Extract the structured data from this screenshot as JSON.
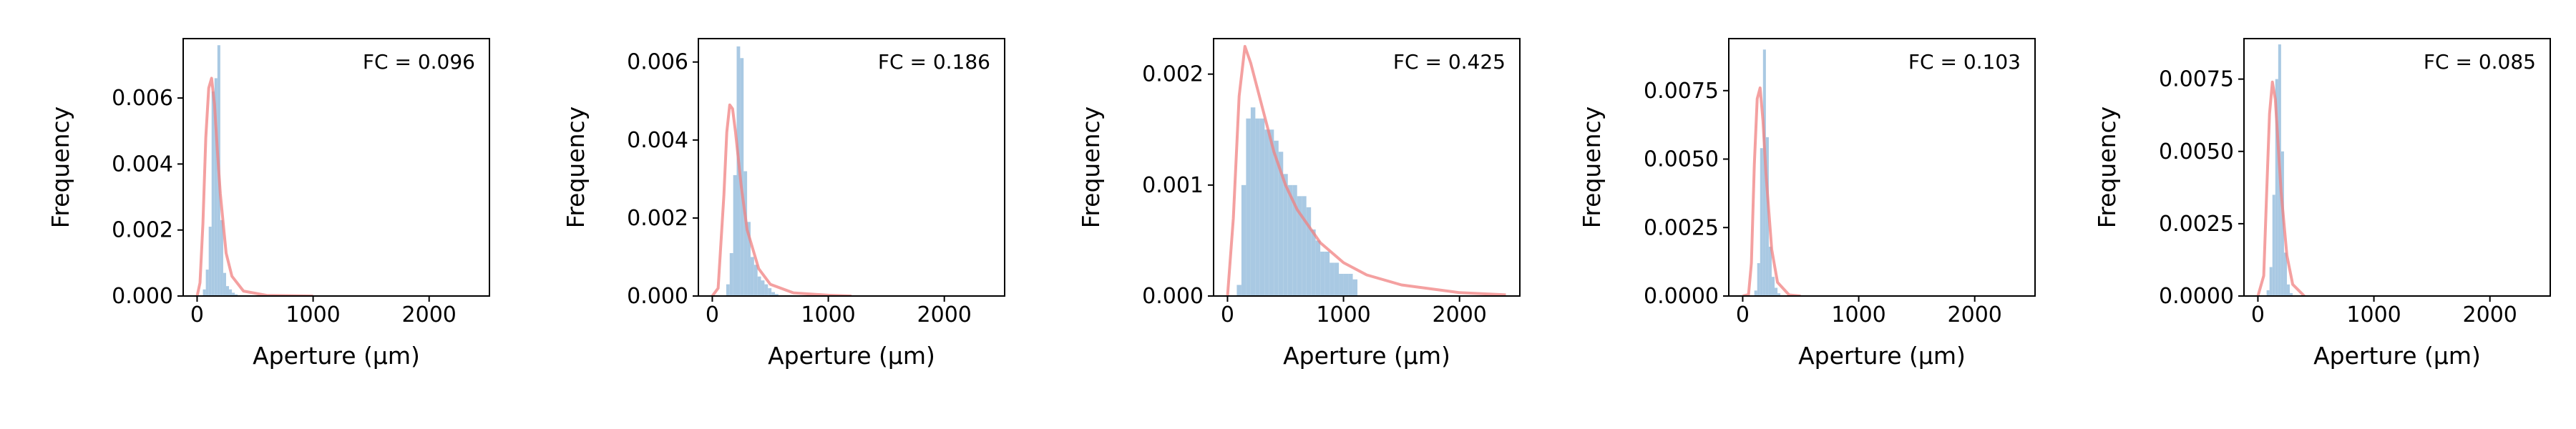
{
  "style": {
    "hist_color": "#a9c9e3",
    "curve_color": "#f08080",
    "axis_color": "#000000"
  },
  "chart_data": [
    {
      "type": "bar",
      "annotation": "FC = 0.096",
      "xlabel": "Aperture (μm)",
      "ylabel": "Frequency",
      "xlim": [
        -120,
        2520
      ],
      "ylim": [
        0,
        0.0078
      ],
      "xticks": [
        0,
        1000,
        2000
      ],
      "xtick_labels": [
        "0",
        "1000",
        "2000"
      ],
      "yticks": [
        0,
        0.002,
        0.004,
        0.006
      ],
      "ytick_labels": [
        "0.000",
        "0.002",
        "0.004",
        "0.006"
      ],
      "bin_width": 25,
      "histogram": {
        "bins": [
          50,
          75,
          100,
          125,
          150,
          175,
          200,
          225,
          250,
          275,
          300,
          325
        ],
        "values": [
          0.0002,
          0.0008,
          0.0021,
          0.0062,
          0.0066,
          0.0076,
          0.0023,
          0.0007,
          0.0003,
          0.0002,
          0.0001,
          5e-05
        ]
      },
      "fit_curve": {
        "x": [
          0,
          25,
          50,
          75,
          100,
          125,
          150,
          175,
          200,
          250,
          300,
          400,
          600,
          1000
        ],
        "y": [
          0,
          0.0004,
          0.0022,
          0.0048,
          0.0063,
          0.0066,
          0.0058,
          0.0044,
          0.0031,
          0.0013,
          0.0006,
          0.00015,
          2e-05,
          0
        ]
      }
    },
    {
      "type": "bar",
      "annotation": "FC = 0.186",
      "xlabel": "Aperture (μm)",
      "ylabel": "Frequency",
      "xlim": [
        -120,
        2520
      ],
      "ylim": [
        0,
        0.0066
      ],
      "xticks": [
        0,
        1000,
        2000
      ],
      "xtick_labels": [
        "0",
        "1000",
        "2000"
      ],
      "yticks": [
        0,
        0.002,
        0.004,
        0.006
      ],
      "ytick_labels": [
        "0.000",
        "0.002",
        "0.004",
        "0.006"
      ],
      "bin_width": 30,
      "histogram": {
        "bins": [
          120,
          150,
          180,
          210,
          240,
          270,
          300,
          330,
          360,
          390,
          420,
          450,
          480,
          510,
          540
        ],
        "values": [
          0.0003,
          0.0011,
          0.0031,
          0.0064,
          0.0061,
          0.0032,
          0.0019,
          0.001,
          0.0008,
          0.0005,
          0.0004,
          0.0003,
          0.0002,
          0.0001,
          5e-05
        ]
      },
      "fit_curve": {
        "x": [
          0,
          50,
          100,
          125,
          150,
          175,
          200,
          250,
          300,
          400,
          500,
          700,
          1000,
          1200
        ],
        "y": [
          0,
          0.0002,
          0.0026,
          0.0042,
          0.0049,
          0.0048,
          0.0042,
          0.0028,
          0.0017,
          0.0007,
          0.0003,
          8e-05,
          2e-05,
          0
        ]
      }
    },
    {
      "type": "bar",
      "annotation": "FC = 0.425",
      "xlabel": "Aperture (μm)",
      "ylabel": "Frequency",
      "xlim": [
        -120,
        2520
      ],
      "ylim": [
        0,
        0.00232
      ],
      "xticks": [
        0,
        1000,
        2000
      ],
      "xtick_labels": [
        "0",
        "1000",
        "2000"
      ],
      "yticks": [
        0,
        0.001,
        0.002
      ],
      "ytick_labels": [
        "0.000",
        "0.001",
        "0.002"
      ],
      "bin_width": 40,
      "histogram": {
        "bins": [
          80,
          120,
          160,
          200,
          240,
          280,
          320,
          360,
          400,
          440,
          480,
          520,
          560,
          600,
          640,
          680,
          720,
          760,
          800,
          840,
          880,
          920,
          960,
          1000,
          1040,
          1080
        ],
        "values": [
          0.0001,
          0.001,
          0.0016,
          0.0017,
          0.0016,
          0.0016,
          0.0015,
          0.0015,
          0.0014,
          0.0013,
          0.0011,
          0.001,
          0.001,
          0.0009,
          0.0009,
          0.0008,
          0.0006,
          0.0005,
          0.0004,
          0.0004,
          0.0003,
          0.0003,
          0.0002,
          0.0002,
          0.0002,
          0.00015
        ]
      },
      "fit_curve": {
        "x": [
          0,
          50,
          100,
          150,
          200,
          250,
          300,
          400,
          500,
          600,
          800,
          1000,
          1200,
          1500,
          2000,
          2400
        ],
        "y": [
          0,
          0.0007,
          0.0018,
          0.00225,
          0.0021,
          0.0019,
          0.0017,
          0.0013,
          0.001,
          0.00078,
          0.00048,
          0.0003,
          0.00019,
          0.0001,
          3e-05,
          1e-05
        ]
      }
    },
    {
      "type": "bar",
      "annotation": "FC = 0.103",
      "xlabel": "Aperture (μm)",
      "ylabel": "Frequency",
      "xlim": [
        -120,
        2520
      ],
      "ylim": [
        0,
        0.0094
      ],
      "xticks": [
        0,
        1000,
        2000
      ],
      "xtick_labels": [
        "0",
        "1000",
        "2000"
      ],
      "yticks": [
        0,
        0.0025,
        0.005,
        0.0075
      ],
      "ytick_labels": [
        "0.0000",
        "0.0025",
        "0.0050",
        "0.0075"
      ],
      "bin_width": 25,
      "histogram": {
        "bins": [
          100,
          125,
          150,
          175,
          200,
          225,
          250,
          275,
          300
        ],
        "values": [
          0.0002,
          0.0012,
          0.0054,
          0.009,
          0.0058,
          0.0018,
          0.0007,
          0.0003,
          0.0001
        ]
      },
      "fit_curve": {
        "x": [
          0,
          50,
          75,
          100,
          125,
          150,
          175,
          200,
          250,
          300,
          400,
          500
        ],
        "y": [
          0,
          5e-05,
          0.0012,
          0.0048,
          0.0072,
          0.0076,
          0.0064,
          0.0045,
          0.0017,
          0.0005,
          4e-05,
          0
        ]
      }
    },
    {
      "type": "bar",
      "annotation": "FC = 0.085",
      "xlabel": "Aperture (μm)",
      "ylabel": "Frequency",
      "xlim": [
        -120,
        2520
      ],
      "ylim": [
        0,
        0.0089
      ],
      "xticks": [
        0,
        1000,
        2000
      ],
      "xtick_labels": [
        "0",
        "1000",
        "2000"
      ],
      "yticks": [
        0,
        0.0025,
        0.005,
        0.0075
      ],
      "ytick_labels": [
        "0.0000",
        "0.0025",
        "0.0050",
        "0.0075"
      ],
      "bin_width": 25,
      "histogram": {
        "bins": [
          75,
          100,
          125,
          150,
          175,
          200,
          225,
          250,
          275
        ],
        "values": [
          0.0002,
          0.001,
          0.0035,
          0.0075,
          0.0087,
          0.005,
          0.0015,
          0.0004,
          0.0001
        ]
      },
      "fit_curve": {
        "x": [
          0,
          50,
          75,
          100,
          125,
          150,
          175,
          200,
          250,
          300,
          400
        ],
        "y": [
          0,
          0.0007,
          0.0035,
          0.0063,
          0.0074,
          0.0068,
          0.0052,
          0.0036,
          0.0014,
          0.0004,
          0
        ]
      }
    }
  ]
}
